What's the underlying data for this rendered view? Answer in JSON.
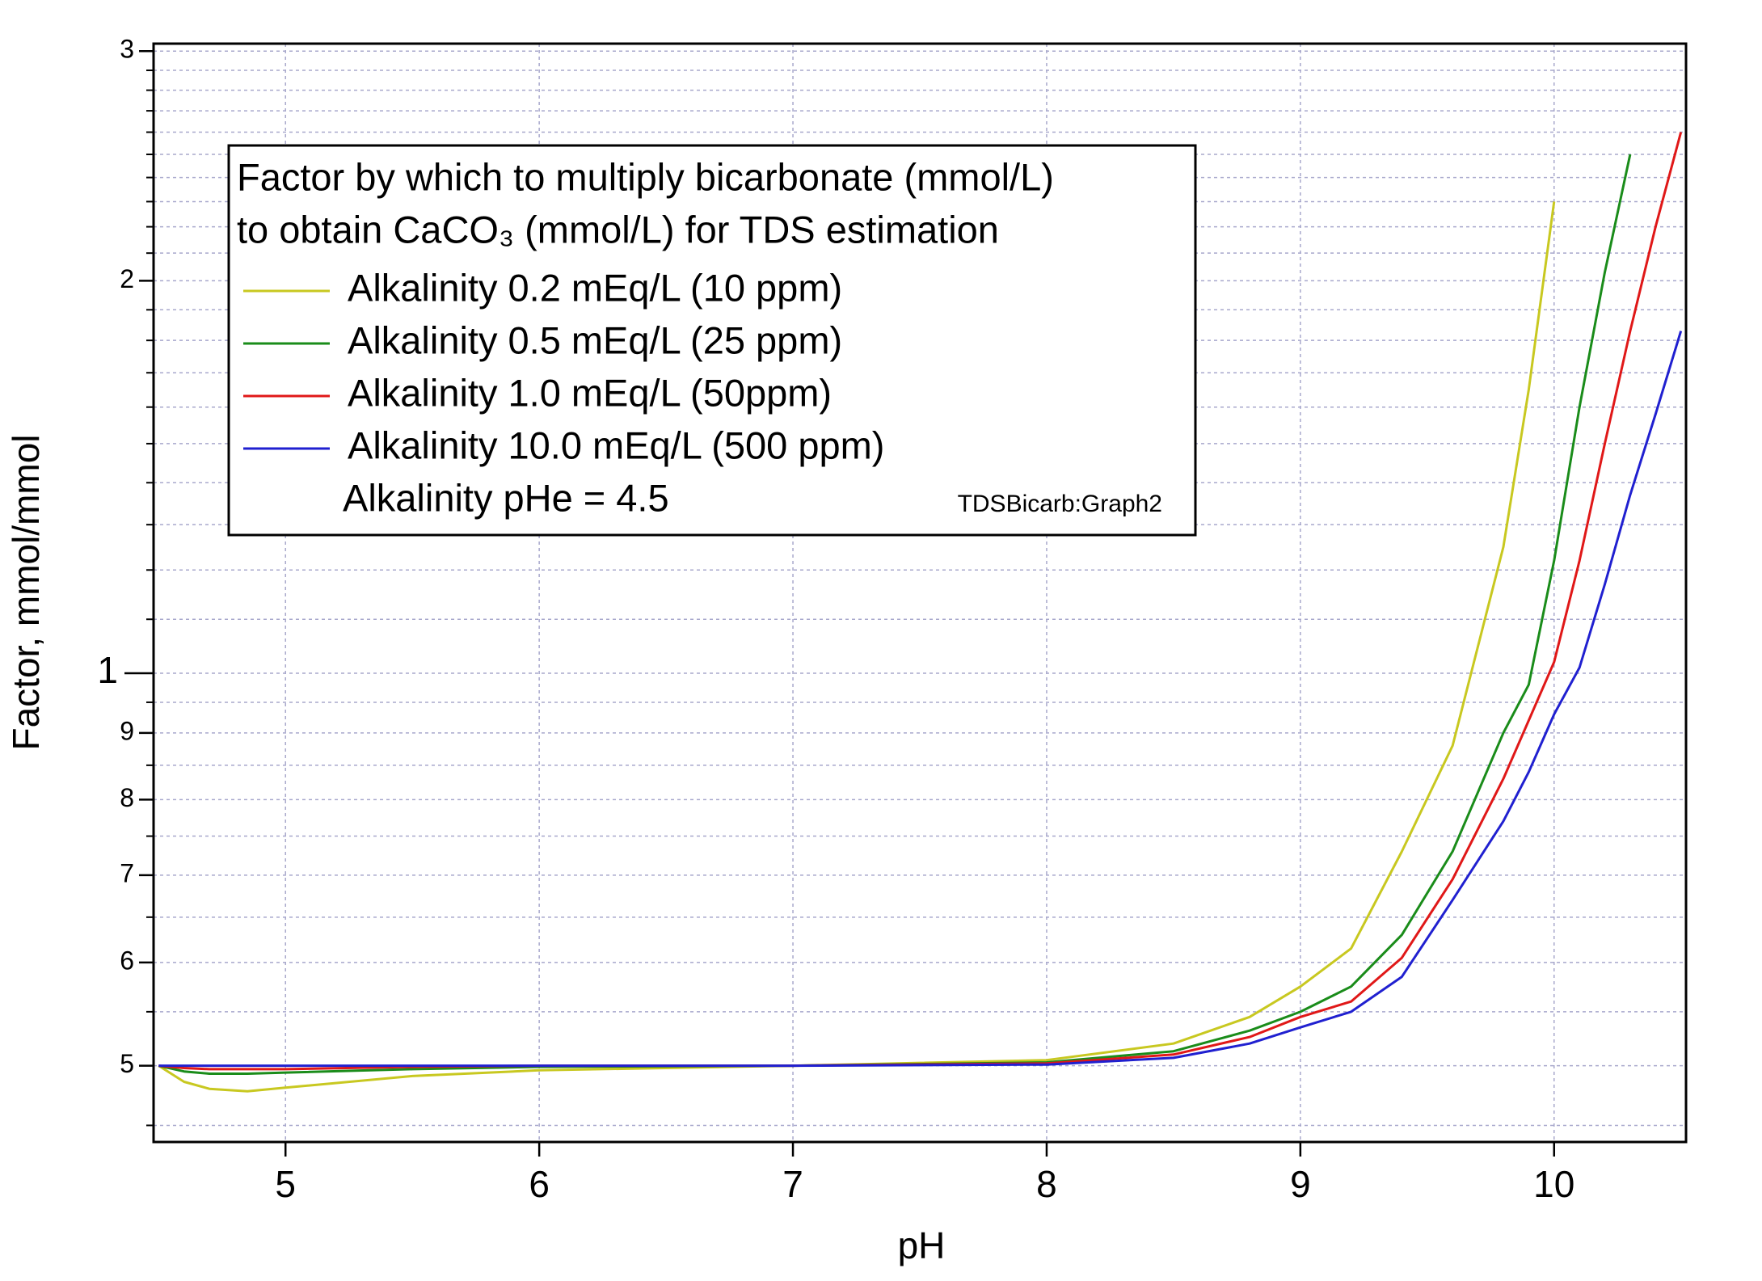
{
  "chart_data": {
    "type": "line",
    "xlabel": "pH",
    "ylabel": "Factor, mmol/mmol",
    "log_y": true,
    "grid": true,
    "legend_title": [
      "Factor by which to multiply bicarbonate (mmol/L)",
      "to obtain CaCO₃ (mmol/L) for TDS estimation"
    ],
    "annotations": [
      "Alkalinity pHe = 4.5",
      "TDSBicarb:Graph2"
    ],
    "legend_position": "upper left",
    "xlim": [
      4.48,
      10.52
    ],
    "ylim": [
      0.437,
      3.04
    ],
    "xticks": [
      5,
      6,
      7,
      8,
      9,
      10
    ],
    "yticks": [
      {
        "value": 0.5,
        "label": "5"
      },
      {
        "value": 0.6,
        "label": "6"
      },
      {
        "value": 0.7,
        "label": "7"
      },
      {
        "value": 0.8,
        "label": "8"
      },
      {
        "value": 0.9,
        "label": "9"
      },
      1,
      2,
      3
    ],
    "yminor_ticks": [
      0.45,
      0.55,
      0.65,
      0.75,
      0.85,
      0.95,
      1.1,
      1.2,
      1.3,
      1.4,
      1.5,
      1.6,
      1.7,
      1.8,
      1.9,
      2.1,
      2.2,
      2.3,
      2.4,
      2.5,
      2.6,
      2.7,
      2.8,
      2.9
    ],
    "x": [
      4.5,
      4.6,
      4.7,
      4.85,
      5,
      5.5,
      6,
      7,
      8,
      8.5,
      8.8,
      9,
      9.2,
      9.4,
      9.6,
      9.8,
      9.9,
      10,
      10.1,
      10.2,
      10.3,
      10.4,
      10.5
    ],
    "series": [
      {
        "name": "Alkalinity 0.2 mEq/L (10 ppm)",
        "color": "#c8c820",
        "values": [
          0.5,
          0.486,
          0.48,
          0.478,
          0.481,
          0.491,
          0.496,
          0.5,
          0.505,
          0.52,
          0.545,
          0.575,
          0.615,
          0.73,
          0.88,
          1.25,
          1.65,
          2.3,
          null,
          null,
          null,
          null,
          null
        ]
      },
      {
        "name": "Alkalinity 0.5 mEq/L (25 ppm)",
        "color": "#1a8c1a",
        "values": [
          0.5,
          0.495,
          0.493,
          0.493,
          0.494,
          0.497,
          0.499,
          0.5,
          0.503,
          0.513,
          0.532,
          0.55,
          0.575,
          0.63,
          0.73,
          0.9,
          0.98,
          1.22,
          1.6,
          2.03,
          2.5,
          null,
          null
        ]
      },
      {
        "name": "Alkalinity 1.0 mEq/L (50ppm)",
        "color": "#e01818",
        "values": [
          0.5,
          0.498,
          0.497,
          0.497,
          0.497,
          0.499,
          0.5,
          0.5,
          0.502,
          0.51,
          0.526,
          0.545,
          0.56,
          0.605,
          0.695,
          0.83,
          0.92,
          1.02,
          1.22,
          1.5,
          1.83,
          2.2,
          2.6
        ]
      },
      {
        "name": "Alkalinity 10.0 mEq/L (500 ppm)",
        "color": "#2020d0",
        "values": [
          0.5,
          0.5,
          0.5,
          0.5,
          0.5,
          0.5,
          0.5,
          0.5,
          0.501,
          0.507,
          0.52,
          0.535,
          0.55,
          0.585,
          0.67,
          0.77,
          0.84,
          0.93,
          1.01,
          1.17,
          1.37,
          1.58,
          1.83
        ]
      }
    ]
  }
}
